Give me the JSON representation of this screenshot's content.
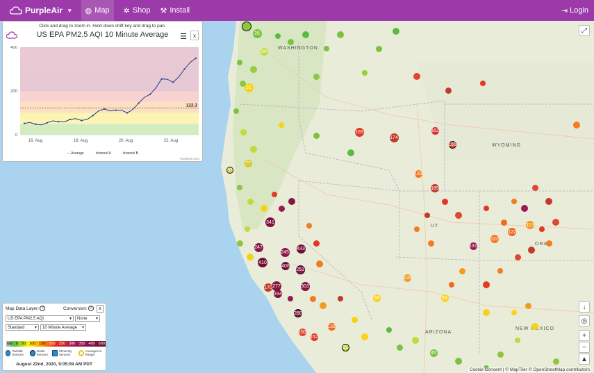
{
  "nav": {
    "brand": "PurpleAir",
    "items": [
      {
        "label": "Map",
        "icon": "globe-icon",
        "active": true
      },
      {
        "label": "Shop",
        "icon": "gear-icon",
        "active": false
      },
      {
        "label": "Install",
        "icon": "wrench-icon",
        "active": false
      }
    ],
    "login": "Login",
    "bg_color": "#9b3aa8"
  },
  "chart": {
    "hint": "Click and drag to zoom in. Hold down shift key and drag to pan.",
    "close": "x",
    "credit": "PurpleAir.com",
    "legend": [
      "Average",
      "channel A",
      "channel B"
    ]
  },
  "chart_data": {
    "type": "line",
    "title": "US EPA PM2.5 AQI 10 Minute Average",
    "x_ticks": [
      "16. Aug",
      "18. Aug",
      "20. Aug",
      "22. Aug"
    ],
    "y_ticks": [
      0,
      200,
      400
    ],
    "ylim": [
      0,
      400
    ],
    "reference_label": "122.3",
    "reference_value": 122.3,
    "series": [
      {
        "name": "Average",
        "x": [
          "15. Aug",
          "15.5 Aug",
          "16. Aug",
          "16.5 Aug",
          "17. Aug",
          "17.5 Aug",
          "18. Aug",
          "18.5 Aug",
          "19. Aug",
          "19.5 Aug",
          "20. Aug",
          "20.5 Aug",
          "21. Aug",
          "21.5 Aug",
          "22. Aug",
          "22.5 Aug"
        ],
        "values": [
          52,
          48,
          55,
          60,
          70,
          65,
          88,
          118,
          112,
          100,
          145,
          185,
          255,
          240,
          300,
          350
        ]
      }
    ],
    "bands": [
      {
        "from": 0,
        "to": 50,
        "color": "#d4ecc2"
      },
      {
        "from": 50,
        "to": 100,
        "color": "#fbf4b3"
      },
      {
        "from": 100,
        "to": 150,
        "color": "#fde0c2"
      },
      {
        "from": 150,
        "to": 200,
        "color": "#f8d1d1"
      },
      {
        "from": 200,
        "to": 300,
        "color": "#e7c9d5"
      },
      {
        "from": 300,
        "to": 400,
        "color": "#e8c9d4"
      }
    ]
  },
  "layers": {
    "title": "Map Data Layer:",
    "help_icon": "?",
    "conversion": "Conversion:",
    "layer_select": "US EPA PM2.5 AQI",
    "conversion_select": "None",
    "style_select": "Standard",
    "average_select": "10 Minute Average",
    "scale": [
      "n/a",
      "0",
      "50",
      "100",
      "150",
      "200",
      "250",
      "300",
      "350",
      "400",
      "600"
    ],
    "checks": [
      "Outside Sensors",
      "Inside Sensors",
      "Show My Sensors",
      "Averages in Range"
    ],
    "date": "August 22nd, 2020, 9:05:09 AM PDT",
    "close": "x"
  },
  "map_labels": [
    "WASHINGTON",
    "WYOMING",
    "NEW MEXICO",
    "ARIZONA",
    "UT",
    "ORA"
  ],
  "attribution": "Cookie Consent | © MapTiler © OpenStreetMap contributors",
  "sensors": [
    {
      "v": "",
      "c": "#8dc63f"
    },
    {
      "v": "26",
      "c": "#7cc242"
    },
    {
      "v": "50",
      "c": "#c4d93a"
    },
    {
      "v": "31",
      "c": "#f5d313"
    },
    {
      "v": "165",
      "c": "#e33826"
    },
    {
      "v": "174",
      "c": "#c23a2b"
    },
    {
      "v": "162",
      "c": "#d53030"
    },
    {
      "v": "155",
      "c": "#e14630"
    },
    {
      "v": "133",
      "c": "#f47b20"
    },
    {
      "v": "131",
      "c": "#9b1a55"
    },
    {
      "v": "341",
      "c": "#7d1040"
    },
    {
      "v": "247",
      "c": "#8a1846"
    },
    {
      "v": "410",
      "c": "#6f0f36"
    },
    {
      "v": "433",
      "c": "#6f0f36"
    },
    {
      "v": "253",
      "c": "#8a1846"
    },
    {
      "v": "303",
      "c": "#85163f"
    },
    {
      "v": "406",
      "c": "#6f0f36"
    },
    {
      "v": "245",
      "c": "#8a1846"
    },
    {
      "v": "277",
      "c": "#85163f"
    },
    {
      "v": "334",
      "c": "#7d1040"
    },
    {
      "v": "170",
      "c": "#c23a2b"
    },
    {
      "v": "280",
      "c": "#85163f"
    },
    {
      "v": "150",
      "c": "#e14630"
    },
    {
      "v": "152",
      "c": "#e33826"
    },
    {
      "v": "138",
      "c": "#f06a1f"
    },
    {
      "v": "105",
      "c": "#f49a1f"
    },
    {
      "v": "94",
      "c": "#ffd11a"
    },
    {
      "v": "45",
      "c": "#7cc242"
    },
    {
      "v": "62",
      "c": "#c4d93a"
    },
    {
      "v": "185",
      "c": "#c23a2b"
    },
    {
      "v": "122",
      "c": "#f47b20"
    },
    {
      "v": "122",
      "c": "#ee6a24"
    },
    {
      "v": "113",
      "c": "#f49a1f"
    },
    {
      "v": "38",
      "c": "#ffd11a"
    },
    {
      "v": "77",
      "c": "#d7c92e"
    },
    {
      "v": "53",
      "c": "#d7c92e"
    }
  ]
}
